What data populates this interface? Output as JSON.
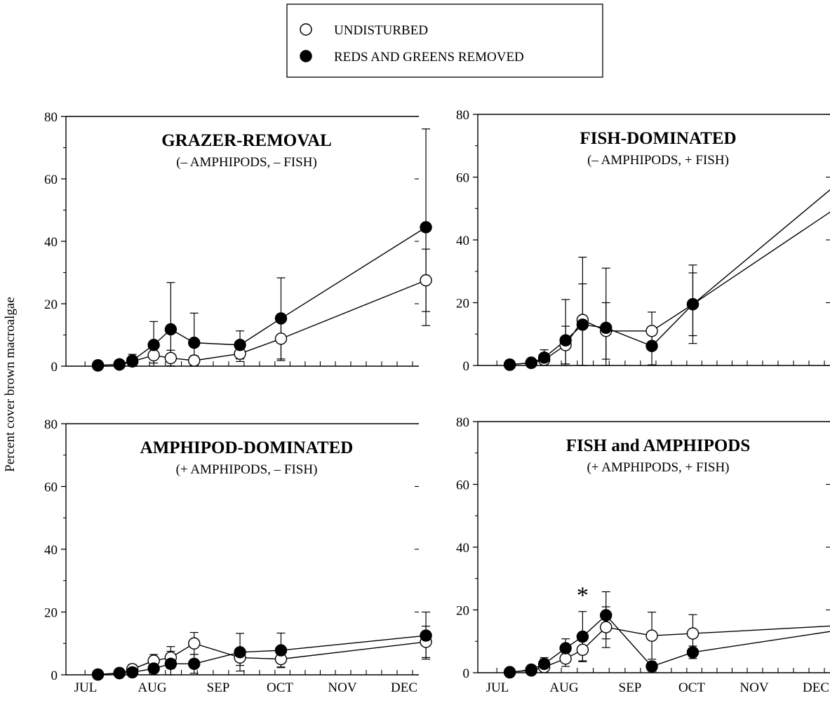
{
  "legend": {
    "entries": [
      {
        "label": "UNDISTURBED",
        "marker": "open-circle"
      },
      {
        "label": "REDS AND GREENS REMOVED",
        "marker": "filled-circle"
      }
    ]
  },
  "ylabel": "Percent cover brown macroalgae",
  "chart_data": [
    {
      "type": "line",
      "title": "GRAZER-REMOVAL",
      "subtitle": "(– AMPHIPODS, – FISH)",
      "ylim": [
        0,
        80
      ],
      "yticks": [
        0,
        20,
        40,
        60,
        80
      ],
      "xticks": [
        "JUL",
        "AUG",
        "SEP",
        "OCT",
        "NOV",
        "DEC"
      ],
      "grid": false,
      "annotations": [],
      "series": [
        {
          "name": "UNDISTURBED",
          "marker": "open",
          "x": [
            "Jul 10",
            "Jul 20",
            "Jul 26",
            "Aug 5",
            "Aug 13",
            "Aug 24",
            "Sep 15",
            "Oct 5",
            "Dec 15"
          ],
          "y": [
            0.3,
            0.5,
            1.5,
            3.5,
            2.6,
            1.8,
            4.0,
            8.8,
            27.5
          ],
          "err": [
            0,
            0,
            1.5,
            2.5,
            2.5,
            1.5,
            2.5,
            7,
            10
          ]
        },
        {
          "name": "REDS AND GREENS REMOVED",
          "marker": "filled",
          "x": [
            "Jul 10",
            "Jul 20",
            "Jul 26",
            "Aug 5",
            "Aug 13",
            "Aug 24",
            "Sep 15",
            "Oct 5",
            "Dec 15"
          ],
          "y": [
            0.2,
            0.6,
            1.8,
            6.8,
            11.8,
            7.5,
            6.8,
            15.3,
            44.5
          ],
          "err": [
            0,
            0,
            2,
            7.5,
            15,
            9.5,
            4.5,
            13,
            31.5
          ]
        }
      ]
    },
    {
      "type": "line",
      "title": "FISH-DOMINATED",
      "subtitle": "(– AMPHIPODS, + FISH)",
      "ylim": [
        0,
        80
      ],
      "yticks": [
        0,
        20,
        40,
        60,
        80
      ],
      "xticks": [
        "JUL",
        "AUG",
        "SEP",
        "OCT",
        "NOV",
        "DEC"
      ],
      "grid": false,
      "annotations": [],
      "series": [
        {
          "name": "UNDISTURBED",
          "marker": "open",
          "x": [
            "Jul 10",
            "Jul 20",
            "Jul 26",
            "Aug 5",
            "Aug 13",
            "Aug 24",
            "Sep 15",
            "Oct 5",
            "Dec 15"
          ],
          "y": [
            0.3,
            0.8,
            1.8,
            6.5,
            14.5,
            11.0,
            11.0,
            19.5,
            50.5
          ],
          "err": [
            0,
            0,
            2,
            6,
            20,
            9,
            6,
            10,
            17
          ]
        },
        {
          "name": "REDS AND GREENS REMOVED",
          "marker": "filled",
          "x": [
            "Jul 10",
            "Jul 20",
            "Jul 26",
            "Aug 5",
            "Aug 13",
            "Aug 24",
            "Sep 15",
            "Oct 5",
            "Dec 15"
          ],
          "y": [
            0.2,
            0.9,
            2.5,
            8.0,
            13.0,
            12.0,
            6.2,
            19.5,
            58.0
          ],
          "err": [
            0,
            0,
            2.5,
            13,
            13,
            19,
            6,
            12.5,
            17.5
          ]
        }
      ]
    },
    {
      "type": "line",
      "title": "AMPHIPOD-DOMINATED",
      "subtitle": "(+ AMPHIPODS, – FISH)",
      "ylim": [
        0,
        80
      ],
      "yticks": [
        0,
        20,
        40,
        60,
        80
      ],
      "xticks": [
        "JUL",
        "AUG",
        "SEP",
        "OCT",
        "NOV",
        "DEC"
      ],
      "grid": false,
      "annotations": [],
      "series": [
        {
          "name": "UNDISTURBED",
          "marker": "open",
          "x": [
            "Jul 10",
            "Jul 20",
            "Jul 26",
            "Aug 5",
            "Aug 13",
            "Aug 24",
            "Sep 15",
            "Oct 5",
            "Dec 15"
          ],
          "y": [
            0.1,
            0.5,
            1.8,
            4.5,
            5.5,
            10.0,
            5.5,
            5.0,
            10.5
          ],
          "err": [
            0,
            0,
            1.5,
            2,
            3.5,
            3.5,
            2.5,
            2.5,
            5
          ]
        },
        {
          "name": "REDS AND GREENS REMOVED",
          "marker": "filled",
          "x": [
            "Jul 10",
            "Jul 20",
            "Jul 26",
            "Aug 5",
            "Aug 13",
            "Aug 24",
            "Sep 15",
            "Oct 5",
            "Dec 15"
          ],
          "y": [
            0.1,
            0.6,
            0.8,
            2.0,
            3.5,
            3.5,
            7.2,
            7.8,
            12.5
          ],
          "err": [
            0,
            0,
            1,
            2,
            4,
            3,
            6,
            5.5,
            7.5
          ]
        }
      ]
    },
    {
      "type": "line",
      "title": "FISH and AMPHIPODS",
      "subtitle": "(+ AMPHIPODS, + FISH)",
      "ylim": [
        0,
        80
      ],
      "yticks": [
        0,
        20,
        40,
        60,
        80
      ],
      "xticks": [
        "JUL",
        "AUG",
        "SEP",
        "OCT",
        "NOV",
        "DEC"
      ],
      "grid": false,
      "annotations": [
        {
          "text": "*",
          "x": "Aug 13",
          "y": 24.5
        }
      ],
      "series": [
        {
          "name": "UNDISTURBED",
          "marker": "open",
          "x": [
            "Jul 10",
            "Jul 20",
            "Jul 26",
            "Aug 5",
            "Aug 13",
            "Aug 24",
            "Sep 15",
            "Oct 5",
            "Dec 15"
          ],
          "y": [
            0.2,
            0.7,
            1.8,
            4.5,
            7.3,
            14.5,
            11.8,
            12.5,
            15.0
          ],
          "err": [
            0,
            0,
            2.5,
            2.5,
            3.5,
            6.5,
            7.5,
            6,
            11.5
          ]
        },
        {
          "name": "REDS AND GREENS REMOVED",
          "marker": "filled",
          "x": [
            "Jul 10",
            "Jul 20",
            "Jul 26",
            "Aug 5",
            "Aug 13",
            "Aug 24",
            "Sep 15",
            "Oct 5",
            "Dec 15"
          ],
          "y": [
            0.1,
            1.0,
            2.8,
            7.8,
            11.5,
            18.3,
            2.0,
            6.5,
            13.5
          ],
          "err": [
            0,
            0,
            2,
            3,
            8,
            7.5,
            1.5,
            2,
            13
          ]
        }
      ]
    }
  ]
}
